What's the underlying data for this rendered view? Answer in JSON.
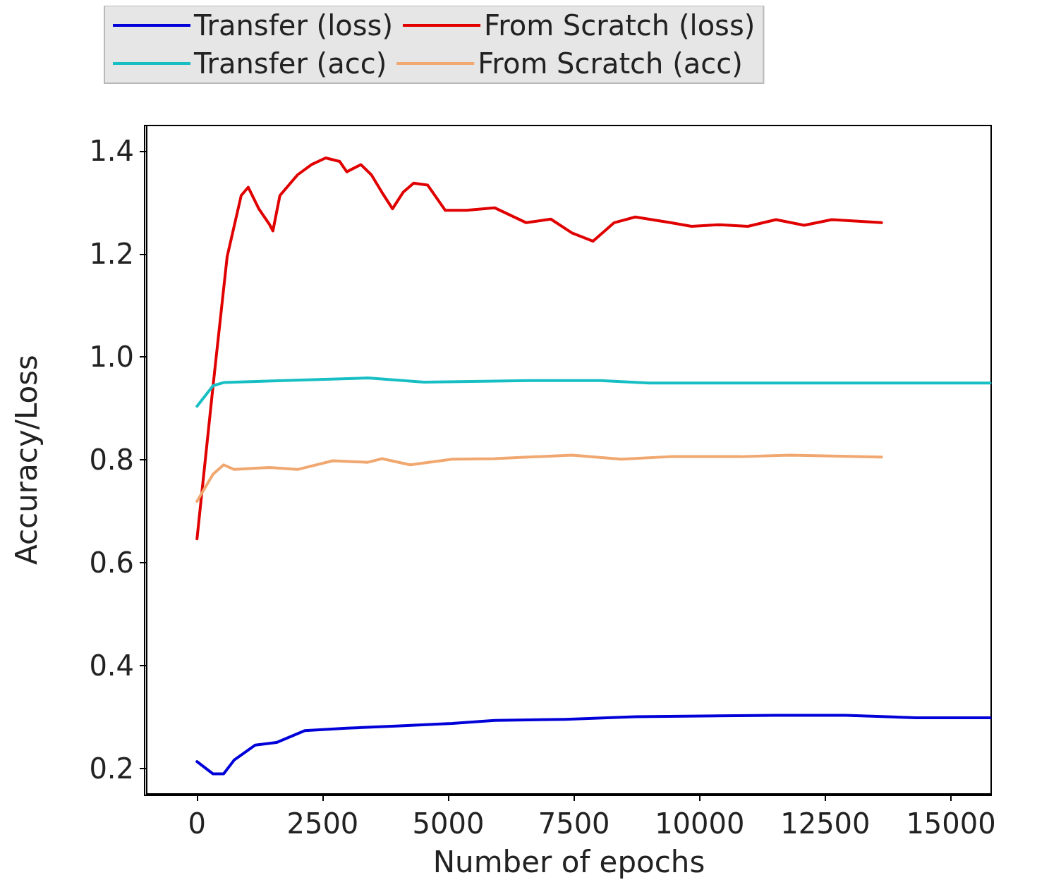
{
  "chart_data": {
    "type": "line",
    "xlabel": "Number of epochs",
    "ylabel": "Accuracy/Loss",
    "xlim": [
      -1000,
      15800
    ],
    "xticks": [
      0,
      2500,
      5000,
      7500,
      10000,
      12500,
      15000
    ],
    "ylim": [
      0.15,
      1.45
    ],
    "yticks": [
      0.2,
      0.4,
      0.6,
      0.8,
      {
        "value": 1.0,
        "label": "1.0"
      },
      1.2,
      1.4
    ],
    "grid": false,
    "legend": "top",
    "marker": "none",
    "line_style": "solid",
    "series": [
      {
        "name": "Transfer (loss)",
        "color": "#0000d8",
        "x": [
          0,
          320,
          530,
          740,
          1160,
          1580,
          2140,
          2980,
          3960,
          5080,
          5920,
          7320,
          8720,
          11520,
          12910,
          14310,
          15780
        ],
        "values": [
          0.213,
          0.189,
          0.189,
          0.216,
          0.245,
          0.25,
          0.273,
          0.278,
          0.282,
          0.287,
          0.293,
          0.295,
          0.3,
          0.303,
          0.303,
          0.298,
          0.298
        ]
      },
      {
        "name": "From Scratch (loss)",
        "color": "#e00000",
        "x": [
          0,
          320,
          600,
          880,
          1020,
          1230,
          1440,
          1510,
          1650,
          2000,
          2280,
          2560,
          2840,
          2980,
          3260,
          3470,
          3680,
          3890,
          4100,
          4310,
          4590,
          4940,
          5360,
          5920,
          6550,
          7040,
          7460,
          7880,
          8300,
          8720,
          9420,
          9840,
          10400,
          10960,
          11520,
          12080,
          12630,
          13620
        ],
        "values": [
          0.646,
          0.944,
          1.195,
          1.314,
          1.33,
          1.288,
          1.258,
          1.245,
          1.314,
          1.354,
          1.374,
          1.387,
          1.38,
          1.36,
          1.374,
          1.354,
          1.32,
          1.288,
          1.32,
          1.338,
          1.334,
          1.285,
          1.285,
          1.29,
          1.261,
          1.268,
          1.241,
          1.225,
          1.261,
          1.272,
          1.261,
          1.254,
          1.257,
          1.254,
          1.267,
          1.256,
          1.267,
          1.261
        ]
      },
      {
        "name": "Transfer (acc)",
        "color": "#17bfc4",
        "x": [
          0,
          320,
          530,
          1720,
          3400,
          4520,
          6620,
          8020,
          9000,
          15780
        ],
        "values": [
          0.904,
          0.944,
          0.95,
          0.954,
          0.959,
          0.951,
          0.954,
          0.954,
          0.949,
          0.949
        ]
      },
      {
        "name": "From Scratch (acc)",
        "color": "#f0a870",
        "x": [
          0,
          320,
          530,
          740,
          1440,
          2000,
          2700,
          3400,
          3680,
          4240,
          5080,
          5920,
          7460,
          8440,
          9420,
          10820,
          11800,
          13620
        ],
        "values": [
          0.719,
          0.772,
          0.79,
          0.781,
          0.785,
          0.781,
          0.798,
          0.795,
          0.802,
          0.79,
          0.801,
          0.802,
          0.809,
          0.801,
          0.806,
          0.806,
          0.809,
          0.805
        ]
      }
    ]
  }
}
